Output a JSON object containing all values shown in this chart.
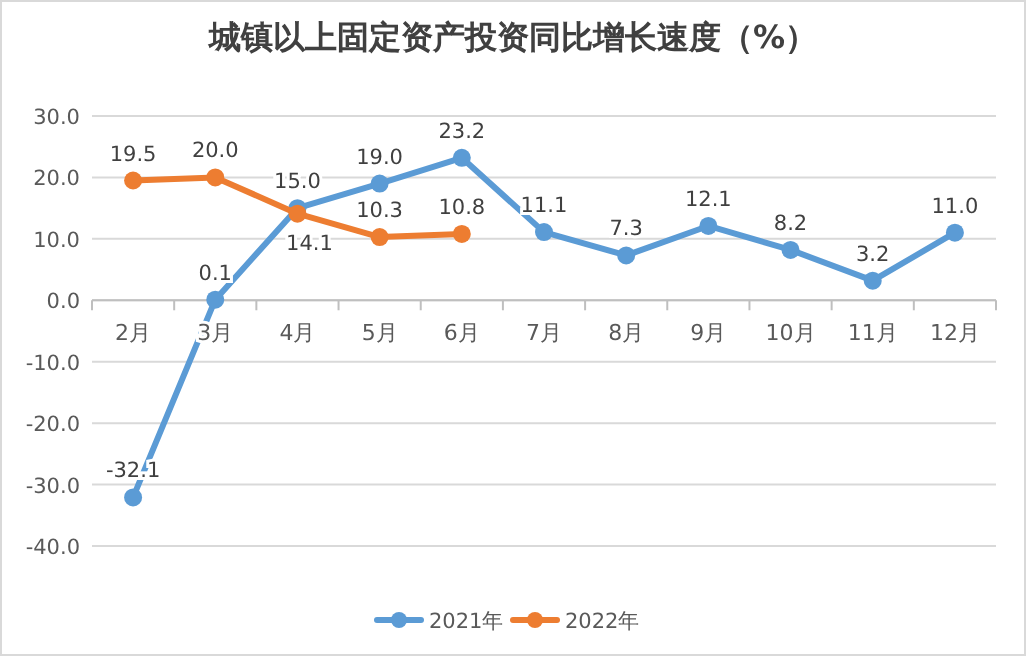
{
  "chart_data": {
    "type": "line",
    "title": "城镇以上固定资产投资同比增长速度（%）",
    "categories": [
      "2月",
      "3月",
      "4月",
      "5月",
      "6月",
      "7月",
      "8月",
      "9月",
      "10月",
      "11月",
      "12月"
    ],
    "series": [
      {
        "name": "2021年",
        "color": "#5b9bd5",
        "values": [
          -32.1,
          0.1,
          15.0,
          19.0,
          23.2,
          11.1,
          7.3,
          12.1,
          8.2,
          3.2,
          11.0
        ],
        "value_labels": [
          "-32.1",
          "0.1",
          "15.0",
          "19.0",
          "23.2",
          "11.1",
          "7.3",
          "12.1",
          "8.2",
          "3.2",
          "11.0"
        ]
      },
      {
        "name": "2022年",
        "color": "#ed7d31",
        "values": [
          19.5,
          20.0,
          14.1,
          10.3,
          10.8,
          null,
          null,
          null,
          null,
          null,
          null
        ],
        "value_labels": [
          "19.5",
          "20.0",
          "14.1",
          "10.3",
          "10.8",
          null,
          null,
          null,
          null,
          null,
          null
        ]
      }
    ],
    "ylim": [
      -40,
      30
    ],
    "yticks": [
      {
        "value": -40,
        "label": "-40.0"
      },
      {
        "value": -30,
        "label": "-30.0"
      },
      {
        "value": -20,
        "label": "-20.0"
      },
      {
        "value": -10,
        "label": "-10.0"
      },
      {
        "value": 0,
        "label": "0.0"
      },
      {
        "value": 10,
        "label": "10.0"
      },
      {
        "value": 20,
        "label": "20.0"
      },
      {
        "value": 30,
        "label": "30.0"
      }
    ],
    "grid": "y",
    "legend": "bottom",
    "marker": "circle",
    "line_style": "solid"
  }
}
